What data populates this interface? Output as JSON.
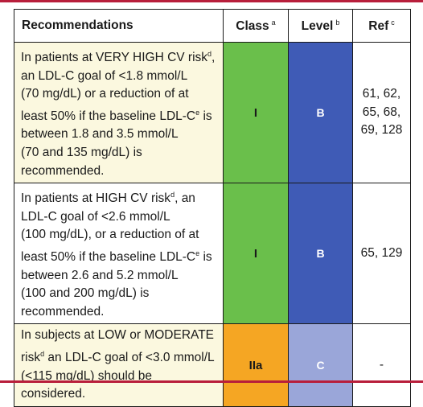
{
  "header": {
    "recommendations": "Recommendations",
    "class": "Class",
    "class_sup": "a",
    "level": "Level",
    "level_sup": "b",
    "ref": "Ref",
    "ref_sup": "c"
  },
  "rows": [
    {
      "lines": [
        [
          "In patients at VERY HIGH CV risk",
          "d",
          ","
        ],
        [
          "an LDL-C goal of <1.8 mmol/L",
          "",
          ""
        ],
        [
          "(70 mg/dL) or a reduction of at",
          "",
          ""
        ],
        [
          "least 50% if the baseline LDL-C",
          "e",
          " is"
        ],
        [
          "between 1.8 and 3.5 mmol/L",
          "",
          ""
        ],
        [
          "(70 and 135 mg/dL) is",
          "",
          ""
        ],
        [
          "recommended.",
          "",
          ""
        ]
      ],
      "class": "I",
      "level": "B",
      "ref_lines": [
        "61, 62,",
        "65, 68,",
        "69, 128"
      ],
      "class_color": "#6abf4b",
      "level_color": "#3f5bb6"
    },
    {
      "lines": [
        [
          "In patients at HIGH CV risk",
          "d",
          ", an"
        ],
        [
          "LDL-C goal of <2.6 mmol/L",
          "",
          ""
        ],
        [
          "(100 mg/dL), or a reduction of at",
          "",
          ""
        ],
        [
          "least 50% if the baseline LDL-C",
          "e",
          " is"
        ],
        [
          "between 2.6 and 5.2 mmol/L",
          "",
          ""
        ],
        [
          "(100 and 200 mg/dL) is",
          "",
          ""
        ],
        [
          "recommended.",
          "",
          ""
        ]
      ],
      "class": "I",
      "level": "B",
      "ref_lines": [
        "65, 129"
      ],
      "class_color": "#6abf4b",
      "level_color": "#3f5bb6"
    },
    {
      "lines": [
        [
          "In subjects at LOW or MODERATE",
          "",
          ""
        ],
        [
          "risk",
          "d",
          " an LDL-C goal of <3.0 mmol/L"
        ],
        [
          "(<115 mg/dL) should be considered.",
          "",
          ""
        ]
      ],
      "class": "IIa",
      "level": "C",
      "ref_lines": [
        "-"
      ],
      "class_color": "#f5a623",
      "level_color": "#9aa6d9"
    }
  ]
}
